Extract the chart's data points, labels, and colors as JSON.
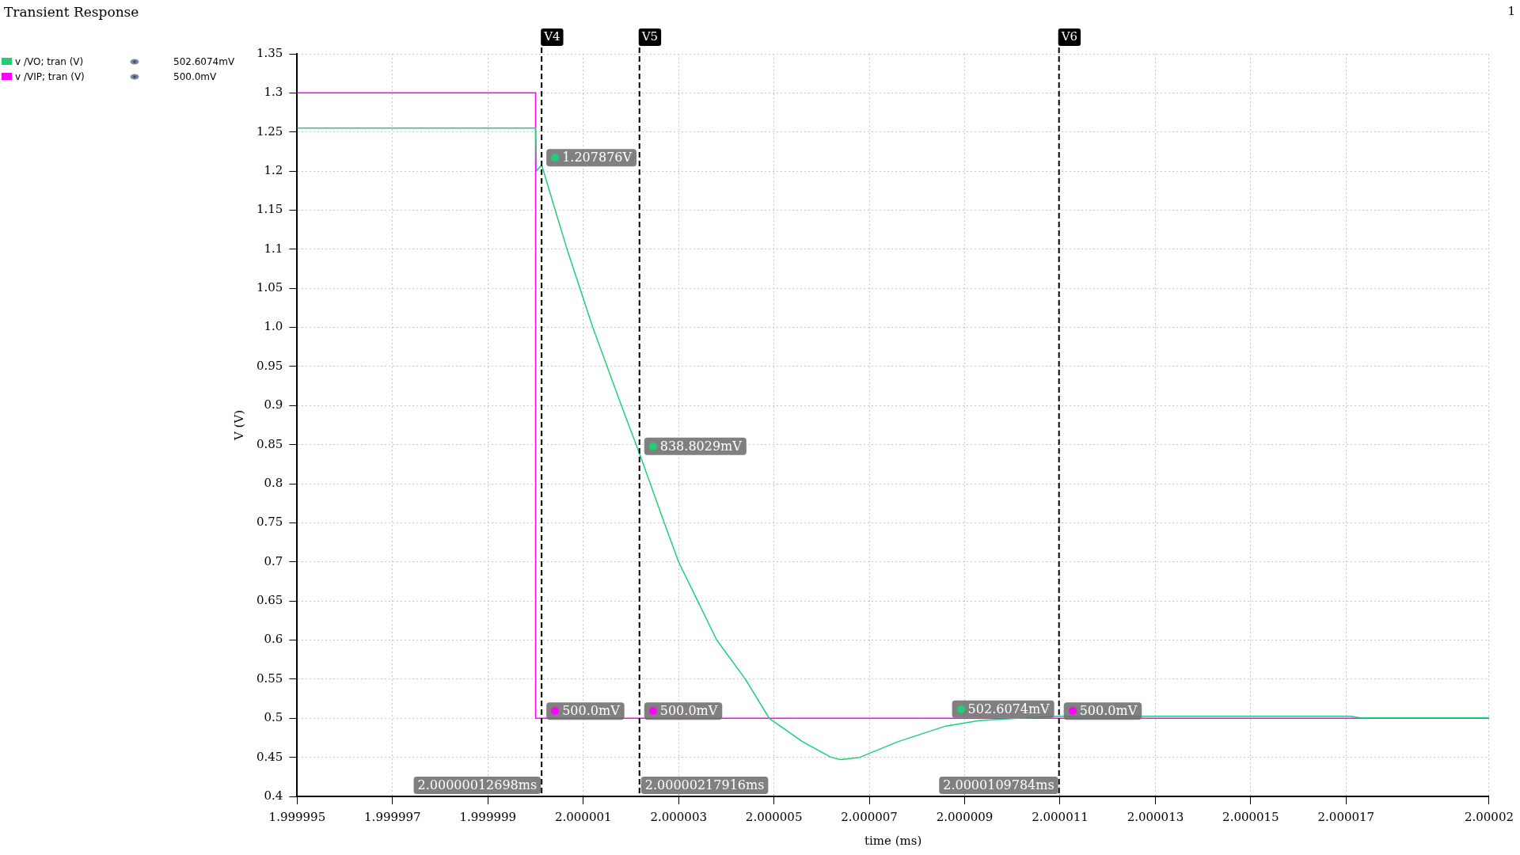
{
  "chart_data": {
    "type": "line",
    "title": "Transient Response",
    "xlabel": "time (ms)",
    "ylabel": "V (V)",
    "xlim": [
      1.999995,
      2.00002
    ],
    "xticks": [
      1.999995,
      1.999997,
      1.999999,
      2.000001,
      2.000003,
      2.000005,
      2.000007,
      2.000009,
      2.000011,
      2.000013,
      2.000015,
      2.000017,
      2.00002
    ],
    "ylim": [
      0.4,
      1.35
    ],
    "yticks": [
      0.4,
      0.45,
      0.5,
      0.55,
      0.6,
      0.65,
      0.7,
      0.75,
      0.8,
      0.85,
      0.9,
      0.95,
      {
        "value": 1,
        "label": "1.0"
      },
      1.05,
      1.1,
      1.15,
      1.2,
      1.25,
      1.3,
      1.35
    ],
    "grid": true,
    "legend": "top left",
    "marker": "none",
    "line_style": "solid",
    "series": [
      {
        "name": "v /VO; tran (V)",
        "color": "#1fcf78",
        "x": [
          1.999995,
          2.0,
          2.00000002,
          2.00000012698,
          2.00000066,
          2.0000012,
          2.0000018,
          2.00000217916,
          2.0000027,
          2.000003,
          2.0000034,
          2.0000038,
          2.0000044,
          2.0000049,
          2.0000056,
          2.0000062,
          2.0000064,
          2.0000068,
          2.0000076,
          2.0000086,
          2.0000093,
          2.0000101,
          2.0000109784,
          2.0000171,
          2.0000173,
          2.00002
        ],
        "values": [
          1.255,
          1.255,
          1.2,
          1.207876,
          1.1,
          1.0,
          0.9,
          0.8388029,
          0.75,
          0.7,
          0.65,
          0.6,
          0.55,
          0.5,
          0.47,
          0.45,
          0.447,
          0.45,
          0.47,
          0.49,
          0.497,
          0.5,
          0.5026074,
          0.5026,
          0.5005,
          0.5005
        ]
      },
      {
        "name": "v /VIP; tran (V)",
        "color": "#ff00ff",
        "x": [
          1.999995,
          2.0,
          2.0,
          2.00002
        ],
        "values": [
          1.3,
          1.3,
          0.5,
          0.5
        ]
      }
    ],
    "ref_lines": [
      {
        "axis": "x",
        "value": 2.00000012698,
        "label": "V4",
        "color": "#000000",
        "line_style": "dashed"
      },
      {
        "axis": "x",
        "value": 2.00000217916,
        "label": "V5",
        "color": "#000000",
        "line_style": "dashed"
      },
      {
        "axis": "x",
        "value": 2.0000109784,
        "label": "V6",
        "color": "#000000",
        "line_style": "dashed"
      }
    ],
    "annotations": [
      "502.6074mV",
      "500.0mV",
      "1",
      {
        "text": "1.207876V",
        "x": 2.00000012698,
        "y": 1.207876
      },
      {
        "text": "500.0mV",
        "x": 2.00000012698,
        "y": 0.5
      },
      {
        "text": "838.8029mV",
        "x": 2.00000217916,
        "y": 0.8388029
      },
      {
        "text": "500.0mV",
        "x": 2.00000217916,
        "y": 0.5
      },
      {
        "text": "500.0mV",
        "x": 2.0000109784,
        "y": 0.5
      },
      {
        "text": "502.6074mV",
        "x": 2.0000109784,
        "y": 0.5026074
      },
      {
        "text": "2.00000012698ms",
        "x": 2.00000012698,
        "y": 0.4
      },
      {
        "text": "2.00000217916ms",
        "x": 2.00000217916,
        "y": 0.4
      },
      {
        "text": "2.0000109784ms",
        "x": 2.0000109784,
        "y": 0.4
      }
    ]
  }
}
